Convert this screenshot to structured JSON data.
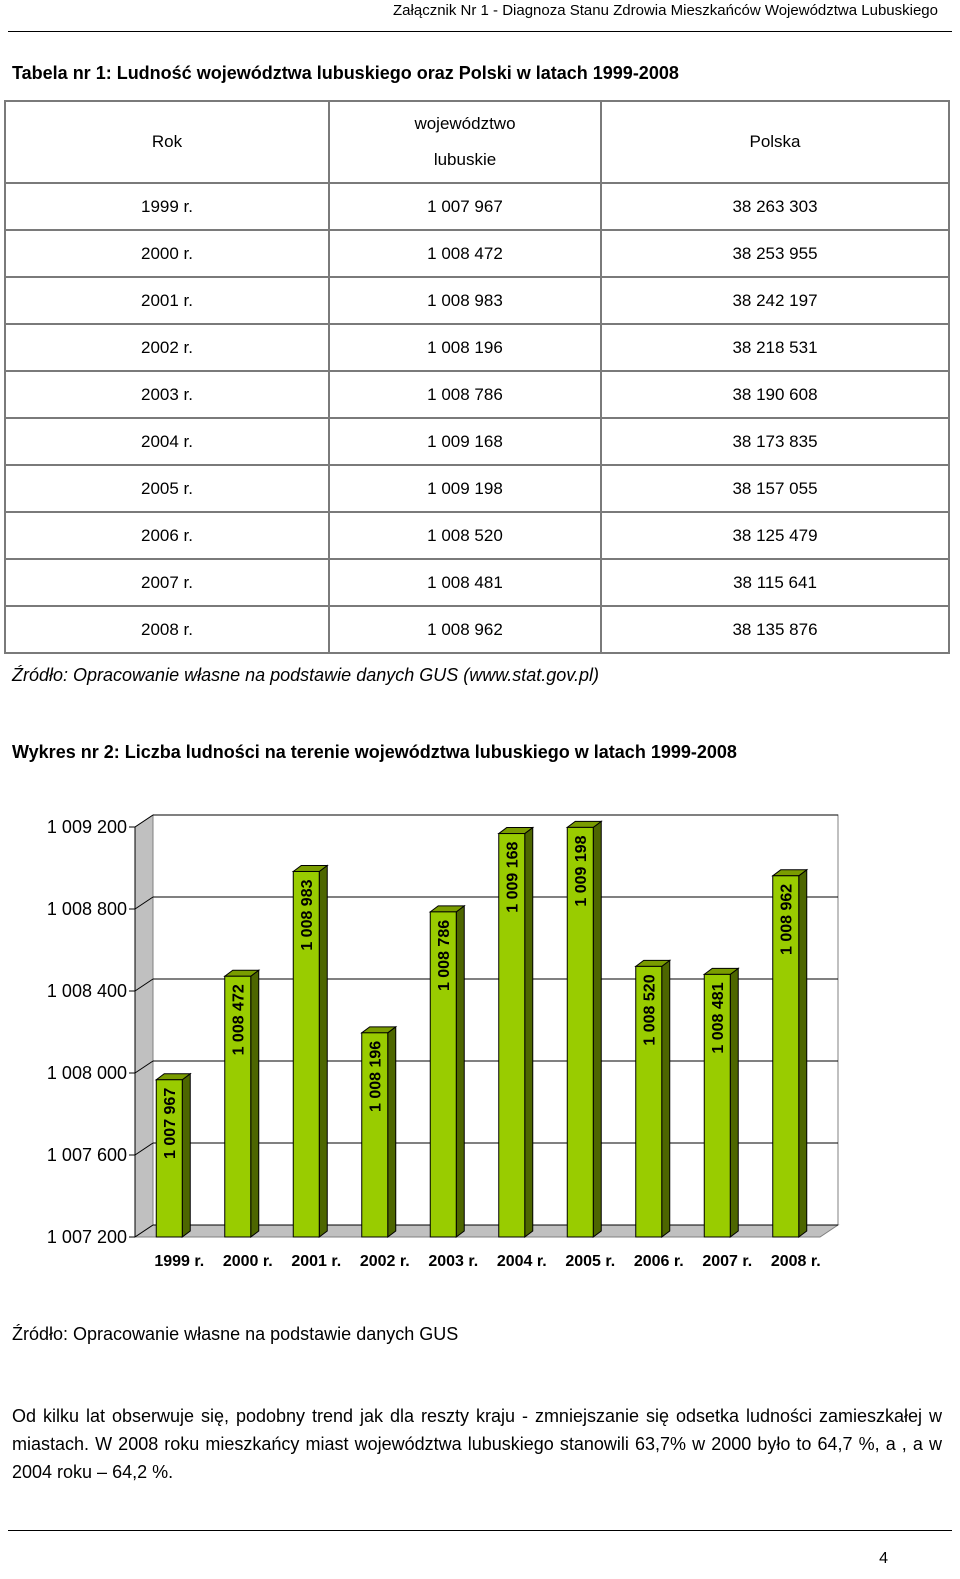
{
  "header": {
    "title": "Załącznik Nr 1 - Diagnoza Stanu Zdrowia Mieszkańców Województwa Lubuskiego"
  },
  "table": {
    "title": "Tabela nr 1: Ludność województwa lubuskiego oraz Polski w latach 1999-2008",
    "headers": {
      "year": "Rok",
      "region_line1": "województwo",
      "region_line2": "lubuskie",
      "country": "Polska"
    },
    "rows": [
      {
        "year": "1999 r.",
        "lubuskie": "1 007 967",
        "polska": "38 263 303"
      },
      {
        "year": "2000 r.",
        "lubuskie": "1 008 472",
        "polska": "38 253 955"
      },
      {
        "year": "2001 r.",
        "lubuskie": "1 008 983",
        "polska": "38 242 197"
      },
      {
        "year": "2002 r.",
        "lubuskie": "1 008 196",
        "polska": "38 218 531"
      },
      {
        "year": "2003 r.",
        "lubuskie": "1 008 786",
        "polska": "38 190 608"
      },
      {
        "year": "2004 r.",
        "lubuskie": "1 009 168",
        "polska": "38 173 835"
      },
      {
        "year": "2005 r.",
        "lubuskie": "1 009 198",
        "polska": "38 157 055"
      },
      {
        "year": "2006 r.",
        "lubuskie": "1 008 520",
        "polska": "38 125 479"
      },
      {
        "year": "2007 r.",
        "lubuskie": "1 008 481",
        "polska": "38 115 641"
      },
      {
        "year": "2008 r.",
        "lubuskie": "1 008 962",
        "polska": "38 135 876"
      }
    ],
    "source": "Źródło: Opracowanie własne na podstawie danych GUS (www.stat.gov.pl)"
  },
  "chart_title": "Wykres nr 2: Liczba ludności na terenie województwa lubuskiego w latach 1999-2008",
  "chart_data": {
    "type": "bar",
    "categories": [
      "1999 r.",
      "2000 r.",
      "2001 r.",
      "2002 r.",
      "2003 r.",
      "2004 r.",
      "2005 r.",
      "2006 r.",
      "2007 r.",
      "2008 r."
    ],
    "values": [
      1007967,
      1008472,
      1008983,
      1008196,
      1008786,
      1009168,
      1009198,
      1008520,
      1008481,
      1008962
    ],
    "data_labels": [
      "1 007 967",
      "1 008 472",
      "1 008 983",
      "1 008 196",
      "1 008 786",
      "1 009 168",
      "1 009 198",
      "1 008 520",
      "1 008 481",
      "1 008 962"
    ],
    "y_ticks": [
      1007200,
      1007600,
      1008000,
      1008400,
      1008800,
      1009200
    ],
    "y_tick_labels": [
      "1 007 200",
      "1 007 600",
      "1 008 000",
      "1 008 400",
      "1 008 800",
      "1 009 200"
    ],
    "ylim": [
      1007200,
      1009200
    ],
    "grid": true,
    "bar_color": "#99cc00",
    "bar_side_color": "#4d6600",
    "wall_color": "#c0c0c0"
  },
  "chart_source": "Źródło: Opracowanie własne na podstawie danych GUS",
  "paragraph": "Od kilku lat obserwuje się, podobny trend jak dla reszty kraju - zmniejszanie się odsetka ludności zamieszkałej w miastach. W 2008 roku mieszkańcy miast województwa lubuskiego stanowili 63,7% w 2000 było to 64,7 %, a , a w 2004 roku – 64,2 %.",
  "page_number": "4"
}
